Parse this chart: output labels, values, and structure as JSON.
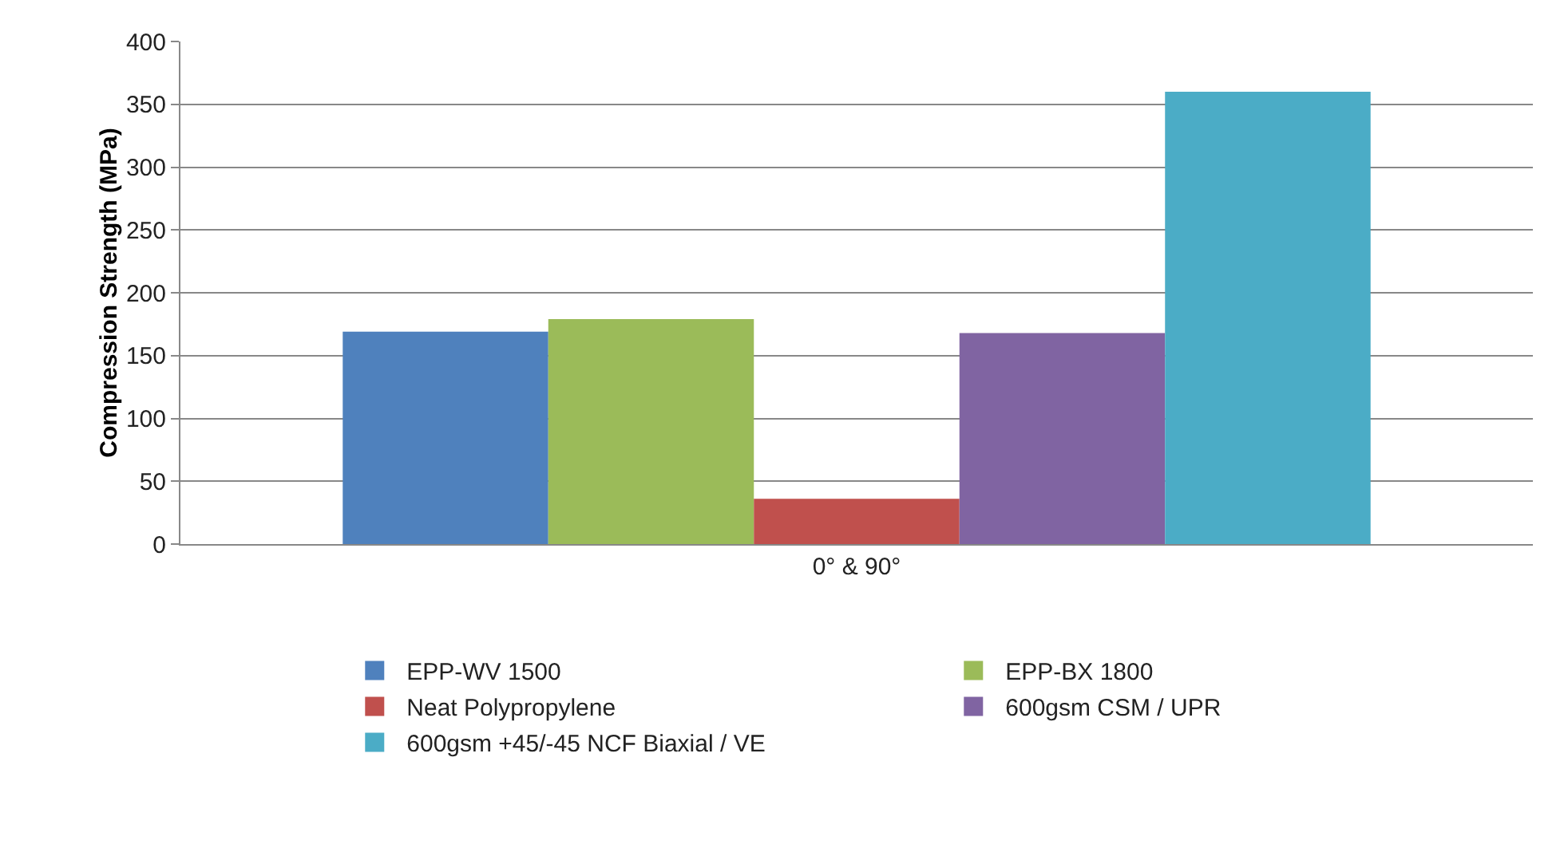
{
  "chart_data": {
    "type": "bar",
    "ylabel": "Compression Strength (MPa)",
    "categories": [
      "0° & 90°"
    ],
    "series": [
      {
        "name": "EPP-WV 1500",
        "color": "#4f81bd",
        "values": [
          169
        ]
      },
      {
        "name": "EPP-BX 1800",
        "color": "#9bbb59",
        "values": [
          179
        ]
      },
      {
        "name": "Neat Polypropylene",
        "color": "#c0504d",
        "values": [
          36
        ]
      },
      {
        "name": "600gsm CSM / UPR",
        "color": "#8064a2",
        "values": [
          168
        ]
      },
      {
        "name": "600gsm +45/-45 NCF Biaxial / VE",
        "color": "#4bacc6",
        "values": [
          360
        ]
      }
    ],
    "ylim": [
      0,
      400
    ],
    "yticks": [
      0,
      50,
      100,
      150,
      200,
      250,
      300,
      350,
      400
    ],
    "grid": "y",
    "legend": "bottom"
  }
}
